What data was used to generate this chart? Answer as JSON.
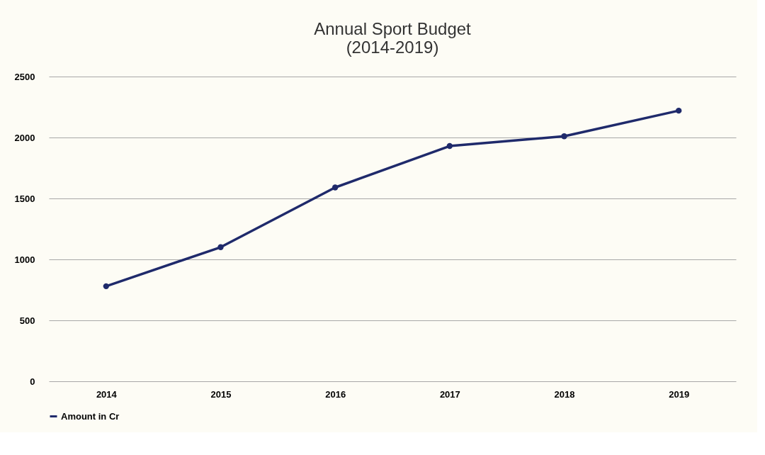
{
  "chart_data": {
    "type": "line",
    "title": [
      "Annual Sport Budget",
      "(2014-2019)"
    ],
    "categories": [
      "2014",
      "2015",
      "2016",
      "2017",
      "2018",
      "2019"
    ],
    "series": [
      {
        "name": "Amount in Cr",
        "color": "#1f2a6b",
        "values": [
          780,
          1100,
          1590,
          1930,
          2010,
          2220
        ]
      }
    ],
    "ylim": [
      0,
      2500
    ],
    "yticks": [
      0,
      500,
      1000,
      1500,
      2000,
      2500
    ],
    "grid": "y",
    "legend": "bottom",
    "marker": "circle",
    "line_style": "solid"
  }
}
